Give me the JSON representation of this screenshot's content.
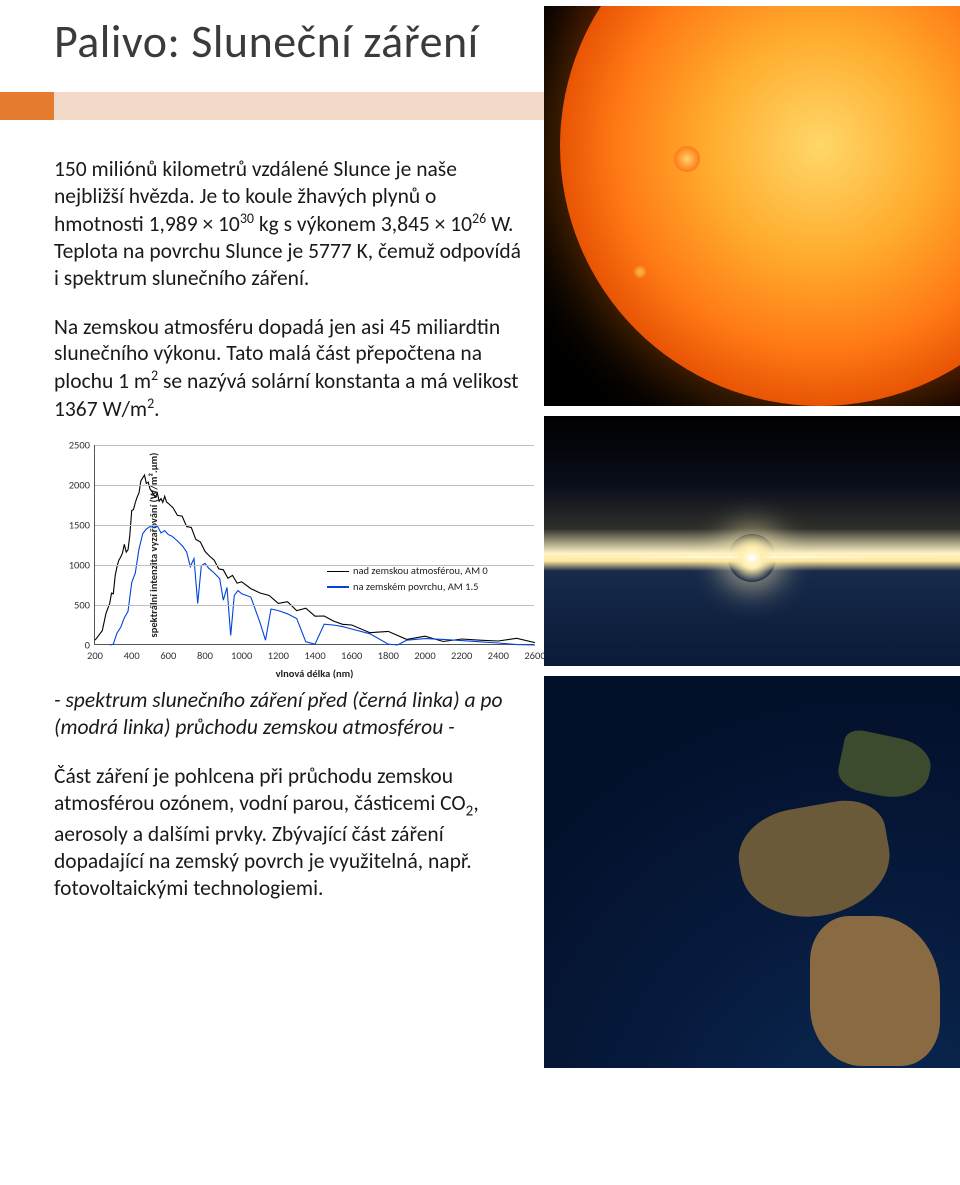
{
  "title": "Palivo: Sluneční záření",
  "para1_a": "150 miliónů kilometrů vzdálené Slunce je naše nejbližší hvězda. Je to koule žhavých plynů o hmotnosti 1,989 × 10",
  "para1_sup1": "30",
  "para1_b": " kg s výkonem 3,845 × 10",
  "para1_sup2": "26",
  "para1_c": " W. Teplota na povrchu Slunce je 5777 K, čemuž odpovídá i spektrum slunečního záření.",
  "para2_a": "Na zemskou atmosféru dopadá jen asi 45 miliardtin slunečního výkonu. Tato malá část přepočtena na plochu 1 m",
  "para2_sup": "2",
  "para2_b": " se nazývá solární konstanta a má velikost 1367 W/m",
  "para2_sup2": "2",
  "para2_c": ".",
  "chart": {
    "type": "line",
    "ylabel": "spektrální intenzita vyzařování (W/m².μm)",
    "xlabel": "vlnová délka (nm)",
    "xmin": 200,
    "xmax": 2600,
    "ymin": 0,
    "ymax": 2500,
    "yticks": [
      0,
      500,
      1000,
      1500,
      2000,
      2500
    ],
    "xticks": [
      200,
      400,
      600,
      800,
      1000,
      1200,
      1400,
      1600,
      1800,
      2000,
      2200,
      2400,
      2600
    ],
    "grid_color": "#bfbfbf",
    "axis_color": "#555555",
    "background": "#ffffff",
    "tick_fontsize": 10.5,
    "label_fontsize": 10.5,
    "line_width": 1.1,
    "legend_pos": "right-mid",
    "series": [
      {
        "name": "nad zemskou atmosférou, AM 0",
        "color": "#000000",
        "points": [
          [
            200,
            60
          ],
          [
            240,
            180
          ],
          [
            280,
            520
          ],
          [
            300,
            640
          ],
          [
            320,
            980
          ],
          [
            340,
            1100
          ],
          [
            360,
            1260
          ],
          [
            380,
            1190
          ],
          [
            400,
            1680
          ],
          [
            420,
            1780
          ],
          [
            440,
            1900
          ],
          [
            460,
            2090
          ],
          [
            480,
            2020
          ],
          [
            500,
            1950
          ],
          [
            520,
            1880
          ],
          [
            540,
            1900
          ],
          [
            560,
            1830
          ],
          [
            580,
            1860
          ],
          [
            600,
            1770
          ],
          [
            650,
            1620
          ],
          [
            700,
            1480
          ],
          [
            750,
            1320
          ],
          [
            800,
            1170
          ],
          [
            850,
            1060
          ],
          [
            900,
            940
          ],
          [
            950,
            870
          ],
          [
            1000,
            790
          ],
          [
            1100,
            650
          ],
          [
            1200,
            520
          ],
          [
            1300,
            430
          ],
          [
            1400,
            360
          ],
          [
            1500,
            300
          ],
          [
            1600,
            250
          ],
          [
            1800,
            170
          ],
          [
            2000,
            110
          ],
          [
            2200,
            75
          ],
          [
            2400,
            50
          ],
          [
            2600,
            30
          ]
        ]
      },
      {
        "name": "na zemském povrchu, AM 1.5",
        "color": "#0044dd",
        "points": [
          [
            280,
            0
          ],
          [
            300,
            10
          ],
          [
            320,
            150
          ],
          [
            340,
            220
          ],
          [
            360,
            340
          ],
          [
            380,
            420
          ],
          [
            400,
            780
          ],
          [
            420,
            900
          ],
          [
            440,
            1200
          ],
          [
            460,
            1390
          ],
          [
            480,
            1450
          ],
          [
            500,
            1480
          ],
          [
            520,
            1470
          ],
          [
            540,
            1490
          ],
          [
            560,
            1400
          ],
          [
            580,
            1430
          ],
          [
            600,
            1380
          ],
          [
            620,
            1360
          ],
          [
            650,
            1300
          ],
          [
            680,
            1230
          ],
          [
            700,
            1160
          ],
          [
            720,
            980
          ],
          [
            740,
            1080
          ],
          [
            760,
            520
          ],
          [
            780,
            990
          ],
          [
            800,
            1020
          ],
          [
            820,
            960
          ],
          [
            850,
            900
          ],
          [
            880,
            830
          ],
          [
            900,
            560
          ],
          [
            920,
            720
          ],
          [
            940,
            120
          ],
          [
            960,
            620
          ],
          [
            980,
            680
          ],
          [
            1000,
            640
          ],
          [
            1050,
            600
          ],
          [
            1100,
            280
          ],
          [
            1130,
            60
          ],
          [
            1160,
            450
          ],
          [
            1200,
            430
          ],
          [
            1250,
            390
          ],
          [
            1300,
            330
          ],
          [
            1350,
            40
          ],
          [
            1400,
            10
          ],
          [
            1450,
            260
          ],
          [
            1500,
            250
          ],
          [
            1550,
            230
          ],
          [
            1600,
            200
          ],
          [
            1700,
            140
          ],
          [
            1800,
            10
          ],
          [
            1850,
            0
          ],
          [
            1900,
            60
          ],
          [
            2000,
            80
          ],
          [
            2100,
            70
          ],
          [
            2200,
            55
          ],
          [
            2300,
            40
          ],
          [
            2400,
            25
          ],
          [
            2500,
            5
          ],
          [
            2600,
            0
          ]
        ]
      }
    ]
  },
  "caption": "- spektrum slunečního záření před (černá linka) a po (modrá linka) průchodu zemskou atmosférou -",
  "para3_a": "Část záření je pohlcena při průchodu zemskou atmosférou ozónem, vodní parou, částicemi CO",
  "para3_sub": "2",
  "para3_b": ", aerosoly a dalšími prvky. Zbývající část záření dopadající na zemský povrch je využitelná, např. fotovoltaickými technologiemi.",
  "images": {
    "sun_alt": "sun-photo",
    "horizon_alt": "earth-horizon-sunrise",
    "earth_alt": "earth-from-space"
  }
}
